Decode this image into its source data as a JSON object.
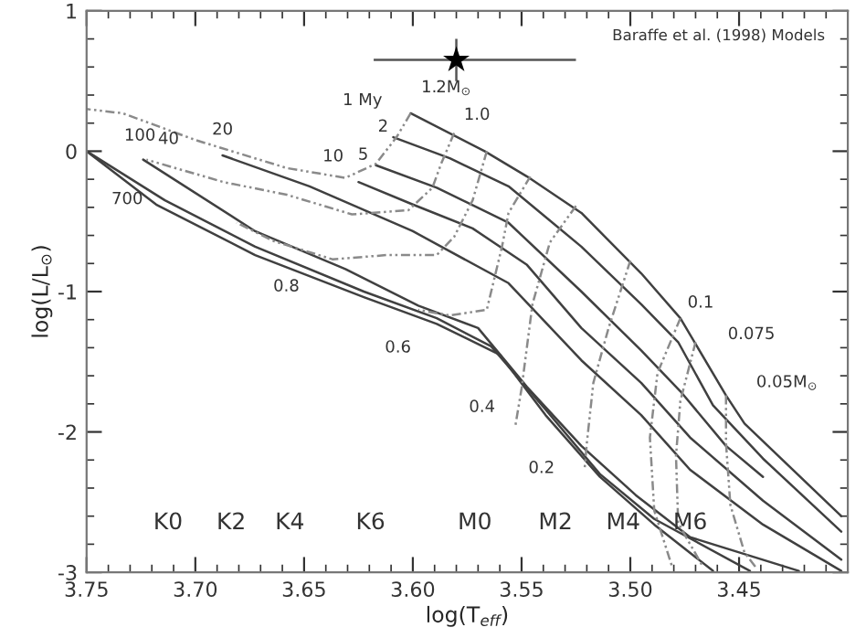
{
  "chart_data": {
    "type": "line",
    "xlabel": "log(T$_{eff}$)",
    "ylabel": "log(L/L$_{⊙}$)",
    "xlim": [
      3.75,
      3.4
    ],
    "ylim": [
      -3,
      1
    ],
    "xticks": [
      {
        "value": 3.75,
        "label": "3.75"
      },
      {
        "value": 3.7,
        "label": "3.70"
      },
      {
        "value": 3.65,
        "label": "3.65"
      },
      {
        "value": 3.6,
        "label": "3.60"
      },
      {
        "value": 3.55,
        "label": "3.55"
      },
      {
        "value": 3.5,
        "label": "3.50"
      },
      {
        "value": 3.45,
        "label": "3.45"
      }
    ],
    "yticks": [
      -3,
      -2,
      -1,
      0,
      1
    ],
    "series": [
      {
        "color": "#404040",
        "line_style": "solid",
        "x": [
          3.601,
          3.567,
          3.5475,
          3.5225,
          3.495,
          3.477,
          3.456,
          3.4475,
          3.403
        ],
        "values": [
          0.27,
          0.0,
          -0.18,
          -0.44,
          -0.87,
          -1.19,
          -1.74,
          -1.94,
          -2.6
        ]
      },
      {
        "color": "#404040",
        "line_style": "solid",
        "x": [
          3.609,
          3.583,
          3.556,
          3.5225,
          3.495,
          3.478,
          3.462,
          3.439,
          3.403
        ],
        "values": [
          0.1,
          -0.05,
          -0.25,
          -0.68,
          -1.09,
          -1.36,
          -1.81,
          -2.19,
          -2.71
        ]
      },
      {
        "color": "#404040",
        "line_style": "solid",
        "x": [
          3.617,
          3.589,
          3.556,
          3.5225,
          3.495,
          3.477,
          3.456,
          3.439
        ],
        "values": [
          -0.1,
          -0.26,
          -0.51,
          -1.0,
          -1.42,
          -1.71,
          -2.1,
          -2.32
        ]
      },
      {
        "color": "#404040",
        "line_style": "solid",
        "x": [
          3.625,
          3.6,
          3.5725,
          3.5475,
          3.5225,
          3.495,
          3.4725,
          3.439,
          3.403
        ],
        "values": [
          -0.22,
          -0.38,
          -0.55,
          -0.81,
          -1.26,
          -1.65,
          -2.04,
          -2.49,
          -2.91
        ]
      },
      {
        "color": "#404040",
        "line_style": "solid",
        "x": [
          3.6875,
          3.6475,
          3.6,
          3.556,
          3.5225,
          3.495,
          3.4725,
          3.439,
          3.403
        ],
        "values": [
          -0.03,
          -0.25,
          -0.57,
          -0.94,
          -1.49,
          -1.88,
          -2.27,
          -2.66,
          -2.99
        ]
      },
      {
        "color": "#404040",
        "line_style": "solid",
        "x": [
          3.724,
          3.6725,
          3.631,
          3.5975,
          3.57,
          3.5475,
          3.5225,
          3.4975,
          3.4725,
          3.4225
        ],
        "values": [
          -0.06,
          -0.57,
          -0.84,
          -1.1,
          -1.26,
          -1.68,
          -2.1,
          -2.45,
          -2.75,
          -2.99
        ]
      },
      {
        "color": "#404040",
        "line_style": "solid",
        "x": [
          3.75,
          3.714,
          3.6725,
          3.6225,
          3.589,
          3.564,
          3.539,
          3.514,
          3.489,
          3.445
        ],
        "values": [
          0.0,
          -0.35,
          -0.68,
          -1.0,
          -1.19,
          -1.39,
          -1.84,
          -2.3,
          -2.62,
          -2.99
        ]
      },
      {
        "color": "#404040",
        "line_style": "solid",
        "x": [
          3.75,
          3.718,
          3.6725,
          3.6225,
          3.589,
          3.56,
          3.539,
          3.514,
          3.489,
          3.462
        ],
        "values": [
          0.0,
          -0.38,
          -0.74,
          -1.04,
          -1.23,
          -1.45,
          -1.88,
          -2.32,
          -2.66,
          -2.99
        ]
      },
      {
        "color": "#8a8a8a",
        "line_style": "dashed",
        "x": [
          3.601,
          3.6075,
          3.617,
          3.631,
          3.658,
          3.7,
          3.7333,
          3.75
        ],
        "values": [
          0.27,
          0.1,
          -0.09,
          -0.19,
          -0.12,
          0.08,
          0.27,
          0.3
        ]
      },
      {
        "color": "#8a8a8a",
        "line_style": "dashed",
        "x": [
          3.581,
          3.587,
          3.591,
          3.602,
          3.628,
          3.658,
          3.687,
          3.7225
        ],
        "values": [
          0.13,
          -0.09,
          -0.26,
          -0.42,
          -0.45,
          -0.31,
          -0.22,
          -0.06
        ]
      },
      {
        "color": "#8a8a8a",
        "line_style": "dashed",
        "x": [
          3.566,
          3.5725,
          3.581,
          3.589,
          3.612,
          3.637,
          3.664,
          3.681
        ],
        "values": [
          0.0,
          -0.35,
          -0.61,
          -0.74,
          -0.74,
          -0.77,
          -0.64,
          -0.51
        ]
      },
      {
        "color": "#8a8a8a",
        "line_style": "dashed",
        "x": [
          3.546,
          3.556,
          3.559,
          3.566,
          3.583,
          3.5975
        ],
        "values": [
          -0.18,
          -0.44,
          -0.68,
          -1.13,
          -1.17,
          -1.13
        ]
      },
      {
        "color": "#8a8a8a",
        "line_style": "dashed",
        "x": [
          3.525,
          3.537,
          3.545,
          3.55,
          3.553
        ],
        "values": [
          -0.39,
          -0.65,
          -1.09,
          -1.69,
          -1.97
        ]
      },
      {
        "color": "#8a8a8a",
        "line_style": "dashed",
        "x": [
          3.5,
          3.51,
          3.517,
          3.52,
          3.521
        ],
        "values": [
          -0.78,
          -1.26,
          -1.65,
          -2.08,
          -2.26
        ]
      },
      {
        "color": "#8a8a8a",
        "line_style": "dashed",
        "x": [
          3.477,
          3.4875,
          3.491,
          3.489,
          3.481
        ],
        "values": [
          -1.19,
          -1.58,
          -2.04,
          -2.56,
          -2.95
        ]
      },
      {
        "color": "#8a8a8a",
        "line_style": "dashed",
        "x": [
          3.47,
          3.477,
          3.479,
          3.478,
          3.467
        ],
        "values": [
          -1.36,
          -1.78,
          -2.17,
          -2.65,
          -2.95
        ]
      },
      {
        "color": "#8a8a8a",
        "line_style": "dashed",
        "x": [
          3.456,
          3.456,
          3.454,
          3.4475,
          3.442
        ],
        "values": [
          -1.74,
          -2.08,
          -2.52,
          -2.86,
          -2.97
        ]
      },
      {
        "type": "scatter",
        "color": "#000000",
        "marker": "star",
        "x": [
          3.58
        ],
        "values": [
          0.65
        ],
        "xerrors": [
          [
            3.525,
            3.618
          ]
        ],
        "errors": [
          [
            0.5,
            0.8
          ]
        ]
      }
    ],
    "annotations": [
      "Baraffe et al. (1998) Models",
      "K0",
      "K2",
      "K4",
      "K6",
      "M0",
      "M2",
      "M4",
      "M6",
      {
        "text": "1 My",
        "x": 3.601,
        "y": 0.27
      },
      {
        "text": "2",
        "x": 3.609,
        "y": 0.1
      },
      {
        "text": "5",
        "x": 3.617,
        "y": -0.1
      },
      {
        "text": "10",
        "x": 3.625,
        "y": -0.22
      },
      {
        "text": "20",
        "x": 3.6875,
        "y": -0.03
      },
      {
        "text": "40",
        "x": 3.724,
        "y": -0.06
      },
      {
        "text": "100",
        "x": 3.75,
        "y": 0.0
      },
      {
        "text": "700",
        "x": 3.75,
        "y": 0.0
      },
      {
        "text": "1.2M$_{⊙}$",
        "x": 3.601,
        "y": 0.27
      },
      {
        "text": "1.0",
        "x": 3.581,
        "y": 0.13
      },
      {
        "text": "0.8",
        "x": 3.664,
        "y": -0.64
      },
      {
        "text": "0.6",
        "x": 3.5975,
        "y": -1.13
      },
      {
        "text": "0.4",
        "x": 3.553,
        "y": -1.97
      },
      {
        "text": "0.2",
        "x": 3.521,
        "y": -2.26
      },
      {
        "text": "0.1",
        "x": 3.477,
        "y": -1.19
      },
      {
        "text": "0.075",
        "x": 3.47,
        "y": -1.36
      },
      {
        "text": "0.05M$_{⊙}$",
        "x": 3.456,
        "y": -1.74
      }
    ]
  }
}
